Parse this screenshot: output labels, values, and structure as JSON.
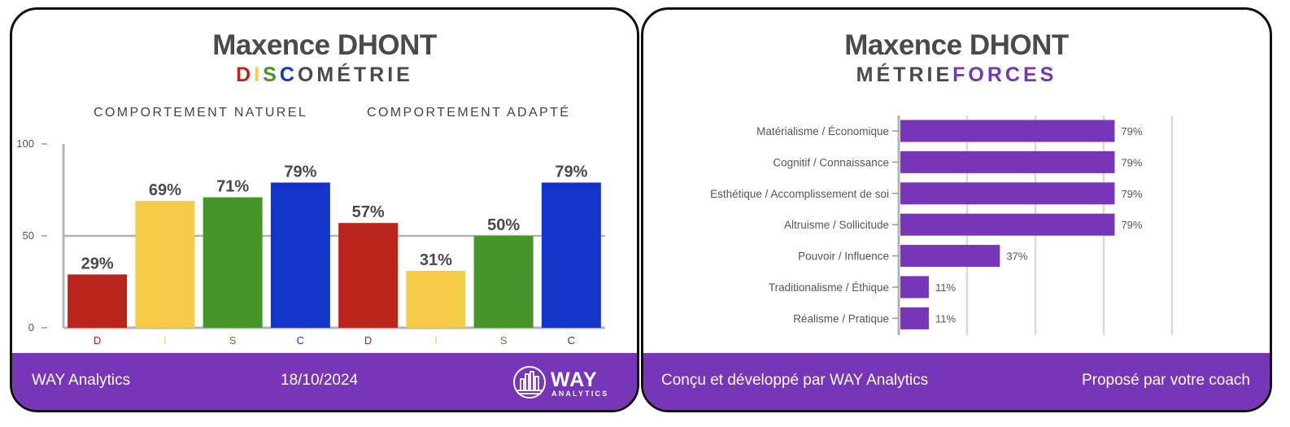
{
  "disc_card": {
    "name": "Maxence DHONT",
    "subtitle_letters": [
      {
        "char": "D",
        "color": "#b9241b"
      },
      {
        "char": "I",
        "color": "#f5cc47"
      },
      {
        "char": "S",
        "color": "#449629"
      },
      {
        "char": "C",
        "color": "#1335c9"
      }
    ],
    "subtitle_rest": "OMÉTRIE",
    "section_natural": "COMPORTEMENT NATUREL",
    "section_adapted": "COMPORTEMENT ADAPTÉ",
    "footer": {
      "brand": "WAY Analytics",
      "date": "18/10/2024",
      "logo_word": "WAY",
      "logo_sub": "ANALYTICS"
    }
  },
  "forces_card": {
    "name": "Maxence DHONT",
    "subtitle_part1": "MÉTRIE",
    "subtitle_part2": "FORCES",
    "footer": {
      "left": "Conçu et développé par WAY Analytics",
      "right": "Proposé par votre coach"
    }
  },
  "colors": {
    "purple": "#7636b7",
    "D": "#b9241b",
    "I": "#f5cc47",
    "S": "#449629",
    "C": "#1335c9"
  },
  "chart_data": [
    {
      "type": "bar",
      "categories": [
        "D",
        "I",
        "S",
        "C",
        "D",
        "I",
        "S",
        "C"
      ],
      "values": [
        29,
        69,
        71,
        79,
        57,
        31,
        50,
        79
      ],
      "value_labels": [
        "29%",
        "69%",
        "71%",
        "79%",
        "57%",
        "31%",
        "50%",
        "79%"
      ],
      "bar_colors": [
        "#b9241b",
        "#f5cc47",
        "#449629",
        "#1335c9",
        "#b9241b",
        "#f5cc47",
        "#449629",
        "#1335c9"
      ],
      "yticks": [
        0,
        50,
        100
      ],
      "ytick_labels": [
        "0",
        "50",
        "100"
      ],
      "ylim": [
        0,
        100
      ],
      "groups": [
        "COMPORTEMENT NATUREL",
        "COMPORTEMENT ADAPTÉ"
      ]
    },
    {
      "type": "bar",
      "orientation": "horizontal",
      "categories": [
        "Matérialisme / Économique",
        "Cognitif / Connaissance",
        "Esthétique / Accomplissement de soi",
        "Altruisme / Sollicitude",
        "Pouvoir / Influence",
        "Traditionalisme / Éthique",
        "Réalisme / Pratique"
      ],
      "values": [
        79,
        79,
        79,
        79,
        37,
        11,
        11
      ],
      "value_labels": [
        "79%",
        "79%",
        "79%",
        "79%",
        "37%",
        "11%",
        "11%"
      ],
      "xlim": [
        0,
        100
      ],
      "color": "#7636b7",
      "grid": true
    }
  ]
}
